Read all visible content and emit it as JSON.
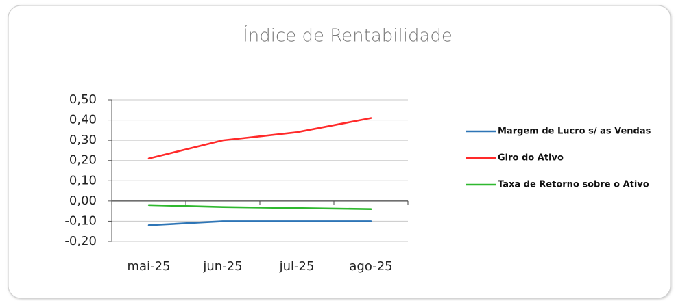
{
  "chart_data": {
    "type": "line",
    "title": "Índice de Rentabilidade",
    "categories": [
      "mai-25",
      "jun-25",
      "jul-25",
      "ago-25"
    ],
    "series": [
      {
        "name": "Margem de Lucro s/ as Vendas",
        "color": "#2e75b6",
        "values": [
          -0.12,
          -0.1,
          -0.1,
          -0.1
        ]
      },
      {
        "name": "Giro do Ativo",
        "color": "#ff2a2a",
        "values": [
          0.21,
          0.3,
          0.34,
          0.41
        ]
      },
      {
        "name": "Taxa de Retorno sobre o Ativo",
        "color": "#2fb82f",
        "values": [
          -0.02,
          -0.03,
          -0.035,
          -0.04
        ]
      }
    ],
    "ylim": [
      -0.2,
      0.5
    ],
    "yticks": [
      {
        "value": -0.2,
        "label": "-0,20"
      },
      {
        "value": -0.1,
        "label": "-0,10"
      },
      {
        "value": 0,
        "label": "0,00"
      },
      {
        "value": 0.1,
        "label": "0,10"
      },
      {
        "value": 0.2,
        "label": "0,20"
      },
      {
        "value": 0.3,
        "label": "0,30"
      },
      {
        "value": 0.4,
        "label": "0,40"
      },
      {
        "value": 0.5,
        "label": "0,50"
      }
    ],
    "grid": true,
    "legend": "right"
  }
}
